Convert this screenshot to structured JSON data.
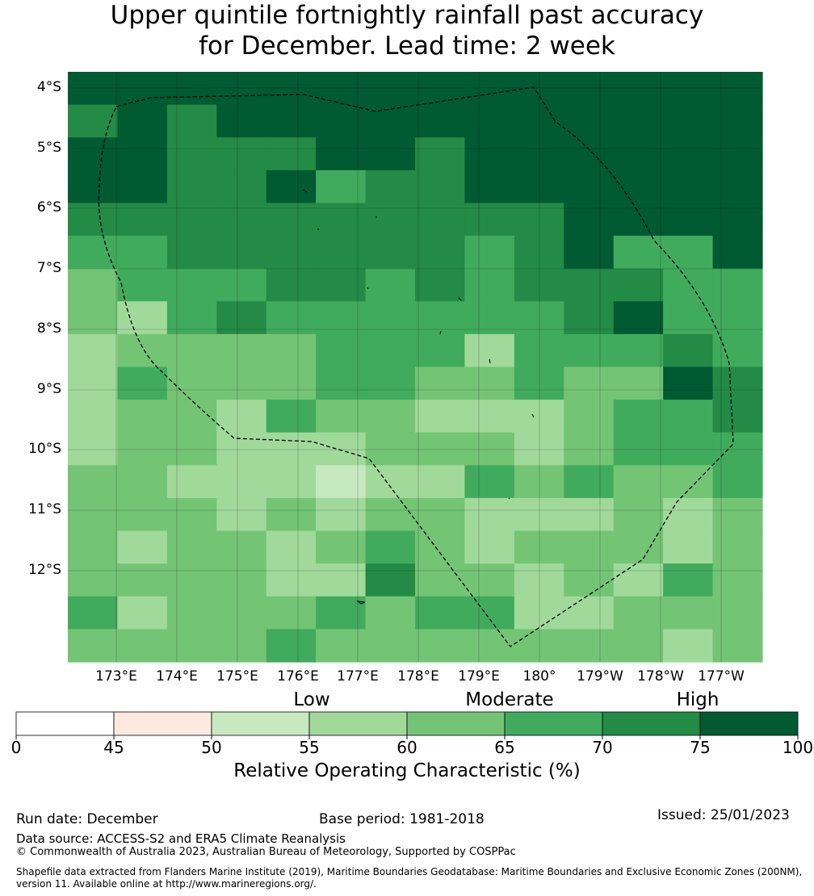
{
  "title": {
    "line1": "Upper quintile fortnightly rainfall past accuracy",
    "line2": "for December. Lead time: 2 week"
  },
  "map": {
    "lat_labels": [
      "4°S",
      "5°S",
      "6°S",
      "7°S",
      "8°S",
      "9°S",
      "10°S",
      "11°S",
      "12°S"
    ],
    "lon_labels": [
      "173°E",
      "174°E",
      "175°E",
      "176°E",
      "177°E",
      "178°E",
      "179°E",
      "180°",
      "179°W",
      "178°W",
      "177°W"
    ],
    "grid_values": [
      [
        78,
        78,
        78,
        78,
        78,
        78,
        78,
        78,
        78,
        78,
        78,
        78,
        78,
        78
      ],
      [
        72,
        78,
        72,
        78,
        78,
        78,
        78,
        78,
        78,
        78,
        78,
        78,
        78,
        78
      ],
      [
        78,
        78,
        72,
        72,
        72,
        78,
        78,
        72,
        78,
        78,
        78,
        78,
        78,
        78
      ],
      [
        78,
        78,
        72,
        72,
        78,
        68,
        72,
        72,
        78,
        78,
        78,
        78,
        78,
        78
      ],
      [
        72,
        72,
        72,
        72,
        72,
        72,
        72,
        72,
        72,
        72,
        78,
        78,
        78,
        78
      ],
      [
        68,
        68,
        72,
        72,
        72,
        72,
        72,
        72,
        68,
        72,
        78,
        68,
        68,
        78
      ],
      [
        63,
        68,
        68,
        68,
        72,
        72,
        68,
        72,
        68,
        72,
        72,
        72,
        68,
        68
      ],
      [
        63,
        58,
        68,
        72,
        68,
        68,
        68,
        68,
        68,
        68,
        72,
        78,
        68,
        68
      ],
      [
        58,
        63,
        63,
        63,
        63,
        68,
        68,
        68,
        58,
        68,
        68,
        68,
        72,
        68
      ],
      [
        58,
        68,
        63,
        63,
        63,
        68,
        68,
        63,
        63,
        68,
        63,
        63,
        78,
        72
      ],
      [
        58,
        63,
        63,
        58,
        68,
        63,
        63,
        58,
        58,
        58,
        63,
        68,
        68,
        72
      ],
      [
        58,
        63,
        63,
        58,
        58,
        58,
        63,
        63,
        63,
        58,
        63,
        68,
        68,
        68
      ],
      [
        63,
        63,
        58,
        58,
        58,
        53,
        58,
        58,
        68,
        63,
        68,
        63,
        63,
        68
      ],
      [
        63,
        63,
        63,
        58,
        63,
        58,
        63,
        63,
        58,
        58,
        58,
        63,
        58,
        63
      ],
      [
        63,
        58,
        63,
        63,
        58,
        63,
        68,
        63,
        58,
        63,
        63,
        63,
        58,
        63
      ],
      [
        63,
        63,
        63,
        63,
        58,
        58,
        72,
        63,
        63,
        58,
        63,
        58,
        68,
        63
      ],
      [
        68,
        58,
        63,
        63,
        63,
        68,
        63,
        68,
        68,
        58,
        58,
        63,
        63,
        63
      ],
      [
        63,
        63,
        63,
        63,
        68,
        63,
        63,
        63,
        63,
        63,
        63,
        63,
        58,
        63
      ]
    ],
    "zone_outline": "dashed EEZ boundary"
  },
  "colorbar": {
    "category_labels": [
      "Low",
      "Moderate",
      "High"
    ],
    "tick_labels": [
      "0",
      "45",
      "50",
      "55",
      "60",
      "65",
      "70",
      "75",
      "100"
    ],
    "bin_colors": [
      "#ffffff",
      "#fde9e0",
      "#c7e9c0",
      "#a1d99b",
      "#74c476",
      "#41ab5d",
      "#238b45",
      "#005a32"
    ],
    "title": "Relative Operating Characteristic (%)"
  },
  "footer": {
    "run_date": "Run date: December",
    "base_period": "Base period: 1981-2018",
    "issued": "Issued: 25/01/2023",
    "data_source": "Data source: ACCESS-S2 and ERA5 Climate Reanalysis",
    "copyright": "© Commonwealth of Australia 2023, Australian Bureau of Meteorology, Supported by COSPPac",
    "shapefile_line1": "Shapefile data extracted from Flanders Marine Institute (2019), Maritime Boundaries Geodatabase: Maritime Boundaries and Exclusive Economic Zones (200NM),",
    "shapefile_line2": "version 11. Available online at http://www.marineregions.org/."
  }
}
